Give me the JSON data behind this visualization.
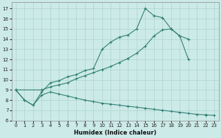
{
  "xlabel": "Humidex (Indice chaleur)",
  "bg_color": "#cceae7",
  "grid_color": "#aad4d0",
  "line_color": "#2d7d72",
  "xlim": [
    -0.5,
    23.5
  ],
  "ylim": [
    6,
    17.6
  ],
  "xticks": [
    0,
    1,
    2,
    3,
    4,
    5,
    6,
    7,
    8,
    9,
    10,
    11,
    12,
    13,
    14,
    15,
    16,
    17,
    18,
    19,
    20,
    21,
    22,
    23
  ],
  "yticks": [
    6,
    7,
    8,
    9,
    10,
    11,
    12,
    13,
    14,
    15,
    16,
    17
  ],
  "line1_x": [
    0,
    1,
    2,
    3,
    4,
    5,
    6,
    7,
    8,
    9,
    10,
    11,
    12,
    13,
    14,
    15,
    16,
    17,
    18,
    19,
    20,
    21,
    22
  ],
  "line1_y": [
    9.0,
    8.0,
    7.5,
    8.8,
    9.7,
    9.9,
    10.3,
    10.5,
    10.9,
    11.1,
    13.0,
    13.7,
    14.2,
    14.4,
    15.0,
    17.0,
    16.3,
    16.1,
    15.0,
    14.3,
    12.0,
    null,
    6.5
  ],
  "line2_x": [
    0,
    3,
    4,
    5,
    6,
    7,
    8,
    9,
    10,
    11,
    12,
    13,
    14,
    15,
    16,
    17,
    18,
    19,
    20
  ],
  "line2_y": [
    9.0,
    9.0,
    9.3,
    9.5,
    9.7,
    10.1,
    10.4,
    10.7,
    11.0,
    11.3,
    11.7,
    12.1,
    12.6,
    13.3,
    14.3,
    14.9,
    15.0,
    14.3,
    14.0
  ],
  "line3_x": [
    0,
    1,
    2,
    3,
    4,
    5,
    6,
    7,
    8,
    9,
    10,
    11,
    12,
    13,
    14,
    15,
    16,
    17,
    18,
    19,
    20,
    21,
    22,
    23
  ],
  "line3_y": [
    9.0,
    8.0,
    7.5,
    8.5,
    8.8,
    8.6,
    8.4,
    8.2,
    8.0,
    7.85,
    7.7,
    7.6,
    7.5,
    7.4,
    7.3,
    7.2,
    7.1,
    7.0,
    6.9,
    6.8,
    6.7,
    6.6,
    6.55,
    6.5
  ]
}
